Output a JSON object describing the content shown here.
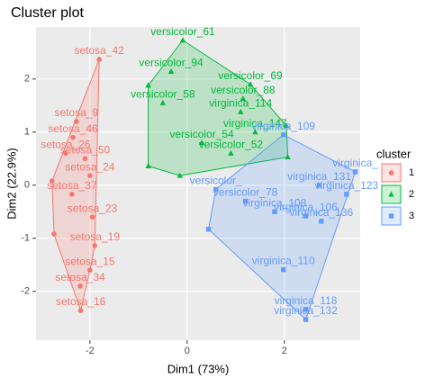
{
  "chart_data": {
    "type": "scatter",
    "title": "Cluster plot",
    "xlabel": "Dim1 (73%)",
    "ylabel": "Dim2 (22.9%)",
    "xlim": [
      -3.11,
      3.56
    ],
    "ylim": [
      -2.92,
      2.98
    ],
    "xticks": [
      -2,
      0,
      2
    ],
    "yticks": [
      -2,
      -1,
      0,
      1,
      2
    ],
    "grid": true,
    "legend_title": "cluster",
    "legend": "right",
    "series": [
      {
        "name": "1",
        "color": "#F8766D",
        "marker": "circle",
        "x": [
          -1.81,
          -2.28,
          -2.35,
          -2.0,
          -2.37,
          -2.78,
          -2.74,
          -1.9,
          -2.0,
          -2.2,
          -2.19,
          -2.1,
          -2.5,
          -1.95
        ],
        "values": [
          2.37,
          1.2,
          0.9,
          0.18,
          -0.17,
          0.08,
          -0.92,
          -1.14,
          -1.6,
          -1.9,
          -2.36,
          0.5,
          0.6,
          -0.6
        ],
        "labels": [
          "setosa_42",
          "setosa_9",
          "setosa_46",
          "setosa_24",
          "setosa_37",
          null,
          null,
          "setosa_19",
          "setosa_15",
          "setosa_34",
          "setosa_16",
          "setosa_50",
          "setosa_26",
          "setosa_23"
        ]
      },
      {
        "name": "2",
        "color": "#00BA38",
        "marker": "triangle",
        "x": [
          -0.09,
          -0.33,
          -0.5,
          1.3,
          1.15,
          1.1,
          1.4,
          -0.8,
          -0.8,
          2.04,
          -0.15,
          2.07,
          0.3,
          0.9
        ],
        "values": [
          2.73,
          2.14,
          1.55,
          1.9,
          1.63,
          1.38,
          1.0,
          1.88,
          0.36,
          1.12,
          0.18,
          0.53,
          0.8,
          0.6
        ],
        "labels": [
          "versicolor_61",
          "versicolor_94",
          "versicolor_58",
          "versicolor_69",
          "versicolor_88",
          "virginica_114",
          "virginica_147",
          null,
          null,
          null,
          null,
          null,
          "versicolor_54",
          "versicolor_52"
        ]
      },
      {
        "name": "3",
        "color": "#619CFF",
        "marker": "square",
        "x": [
          1.98,
          2.44,
          2.44,
          2.76,
          3.28,
          2.72,
          3.46,
          0.44,
          0.59,
          1.98,
          2.44,
          1.2,
          1.8
        ],
        "values": [
          -1.59,
          -2.34,
          -2.53,
          -0.68,
          -0.17,
          0.0,
          0.25,
          -0.83,
          -0.08,
          0.95,
          -0.58,
          -0.3,
          -0.5
        ],
        "labels": [
          "virginica_110",
          "virginica_118",
          "virginica_132",
          "virginica_136",
          "virginica_123",
          "virginica_131",
          "virginica_",
          null,
          "versicolor_",
          "virginica_109",
          "virginica_106",
          "versicolor_78",
          "virginica_108"
        ]
      }
    ]
  }
}
